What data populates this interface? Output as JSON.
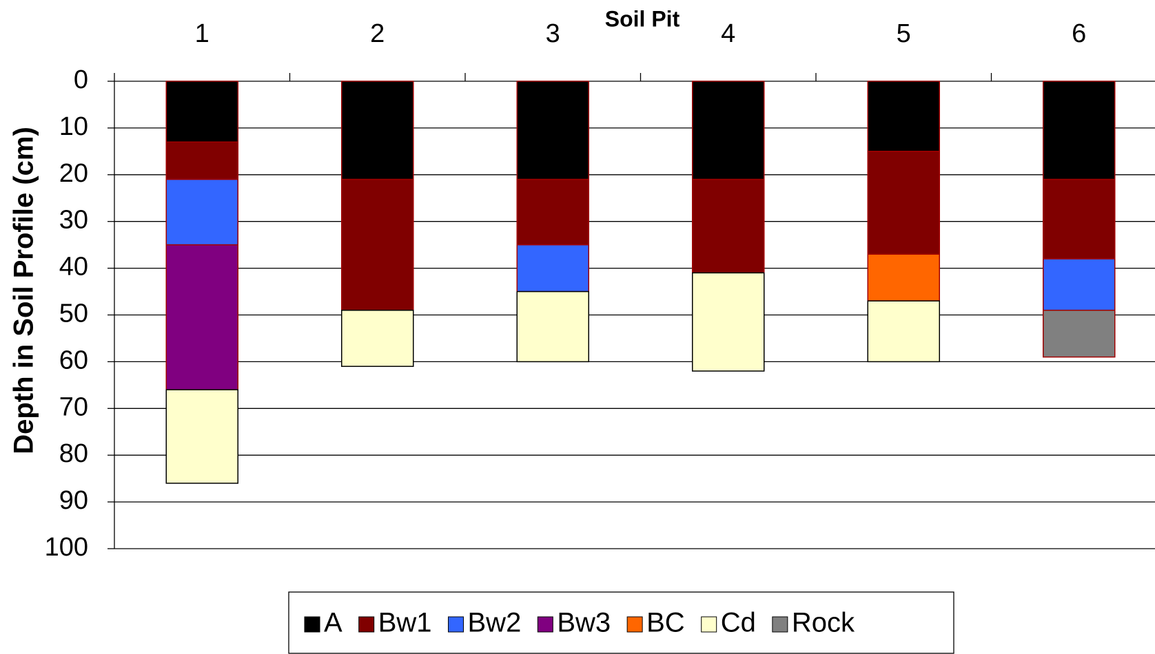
{
  "chart_data": {
    "type": "stacked-bar",
    "title": "Soil Pit",
    "y_label": "Depth in Soil Profile (cm)",
    "categories": [
      "1",
      "2",
      "3",
      "4",
      "5",
      "6"
    ],
    "series": [
      {
        "name": "A",
        "color": "#000000",
        "values": [
          13,
          21,
          21,
          21,
          15,
          21
        ]
      },
      {
        "name": "Bw1",
        "color": "#800000",
        "values": [
          8,
          28,
          14,
          20,
          22,
          17
        ]
      },
      {
        "name": "Bw2",
        "color": "#3366ff",
        "values": [
          14,
          null,
          10,
          null,
          null,
          11
        ]
      },
      {
        "name": "Bw3",
        "color": "#800080",
        "values": [
          31,
          null,
          null,
          null,
          null,
          null
        ]
      },
      {
        "name": "BC",
        "color": "#ff6600",
        "values": [
          null,
          null,
          null,
          null,
          10,
          null
        ]
      },
      {
        "name": "Cd",
        "color": "#ffffcc",
        "values": [
          20,
          12,
          15,
          21,
          13,
          null
        ]
      },
      {
        "name": "Rock",
        "color": "#808080",
        "values": [
          null,
          null,
          null,
          null,
          null,
          10
        ]
      }
    ],
    "ylim": [
      0,
      100
    ],
    "yticks": [
      0,
      10,
      20,
      30,
      40,
      50,
      60,
      70,
      80,
      90,
      100
    ],
    "y_inverted": true,
    "grid": true,
    "legend": "bottom"
  }
}
